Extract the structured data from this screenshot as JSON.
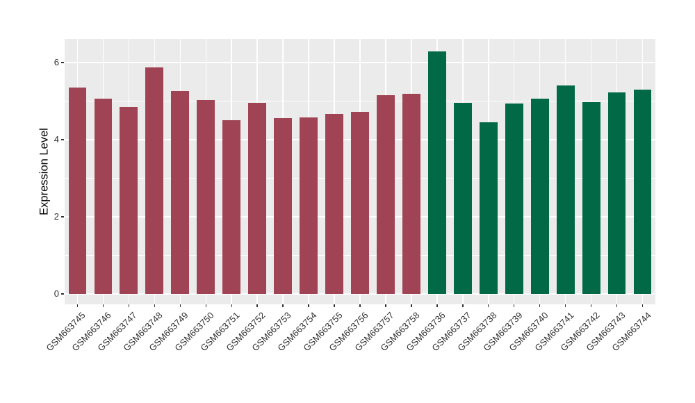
{
  "chart_data": {
    "type": "bar",
    "title": "",
    "xlabel": "",
    "ylabel": "Expression Level",
    "categories": [
      "GSM663745",
      "GSM663746",
      "GSM663747",
      "GSM663748",
      "GSM663749",
      "GSM663750",
      "GSM663751",
      "GSM663752",
      "GSM663753",
      "GSM663754",
      "GSM663755",
      "GSM663756",
      "GSM663757",
      "GSM663758",
      "GSM663736",
      "GSM663737",
      "GSM663738",
      "GSM663739",
      "GSM663740",
      "GSM663741",
      "GSM663742",
      "GSM663743",
      "GSM663744"
    ],
    "values": [
      5.35,
      5.07,
      4.85,
      5.88,
      5.26,
      5.02,
      4.51,
      4.95,
      4.56,
      4.58,
      4.66,
      4.72,
      5.16,
      5.19,
      6.29,
      4.95,
      4.45,
      4.94,
      5.06,
      5.41,
      4.97,
      5.22,
      5.29
    ],
    "groups": [
      "group1",
      "group1",
      "group1",
      "group1",
      "group1",
      "group1",
      "group1",
      "group1",
      "group1",
      "group1",
      "group1",
      "group1",
      "group1",
      "group1",
      "group2",
      "group2",
      "group2",
      "group2",
      "group2",
      "group2",
      "group2",
      "group2",
      "group2"
    ],
    "group_colors": {
      "group1": "#A04455",
      "group2": "#016945"
    },
    "ylim": [
      0,
      6.6
    ],
    "yticks_major": [
      0,
      2,
      4,
      6
    ],
    "yticks_minor": [
      1,
      3,
      5
    ],
    "ytick_labels": [
      "0",
      "2",
      "4",
      "6"
    ],
    "grid": true,
    "legend_position": "none",
    "panel_background": "#EBEBEB",
    "grid_color": "#FFFFFF",
    "tick_mark_color": "#333333",
    "tick_label_color": "#303030",
    "bar_width_fraction": 0.7
  }
}
